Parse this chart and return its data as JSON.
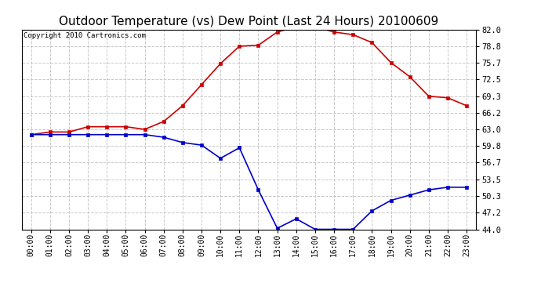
{
  "title": "Outdoor Temperature (vs) Dew Point (Last 24 Hours) 20100609",
  "copyright_text": "Copyright 2010 Cartronics.com",
  "hours": [
    "00:00",
    "01:00",
    "02:00",
    "03:00",
    "04:00",
    "05:00",
    "06:00",
    "07:00",
    "08:00",
    "09:00",
    "10:00",
    "11:00",
    "12:00",
    "13:00",
    "14:00",
    "15:00",
    "16:00",
    "17:00",
    "18:00",
    "19:00",
    "20:00",
    "21:00",
    "22:00",
    "23:00"
  ],
  "temp_red": [
    62.0,
    62.5,
    62.5,
    63.5,
    63.5,
    63.5,
    63.0,
    64.5,
    67.5,
    71.5,
    75.5,
    78.8,
    79.0,
    81.5,
    82.5,
    82.5,
    81.5,
    81.0,
    79.5,
    75.7,
    73.0,
    69.3,
    69.0,
    67.5
  ],
  "dew_blue": [
    62.0,
    62.0,
    62.0,
    62.0,
    62.0,
    62.0,
    62.0,
    61.5,
    60.5,
    60.0,
    57.5,
    59.5,
    51.5,
    44.2,
    46.0,
    44.0,
    44.0,
    44.0,
    47.5,
    49.5,
    50.5,
    51.5,
    52.0,
    52.0
  ],
  "ylim": [
    44.0,
    82.0
  ],
  "yticks": [
    44.0,
    47.2,
    50.3,
    53.5,
    56.7,
    59.8,
    63.0,
    66.2,
    69.3,
    72.5,
    75.7,
    78.8,
    82.0
  ],
  "background_color": "#ffffff",
  "grid_color": "#c8c8c8",
  "red_color": "#cc0000",
  "blue_color": "#0000cc",
  "title_fontsize": 11,
  "copyright_fontsize": 6.5,
  "tick_fontsize": 7,
  "ytick_fontsize": 7.5
}
